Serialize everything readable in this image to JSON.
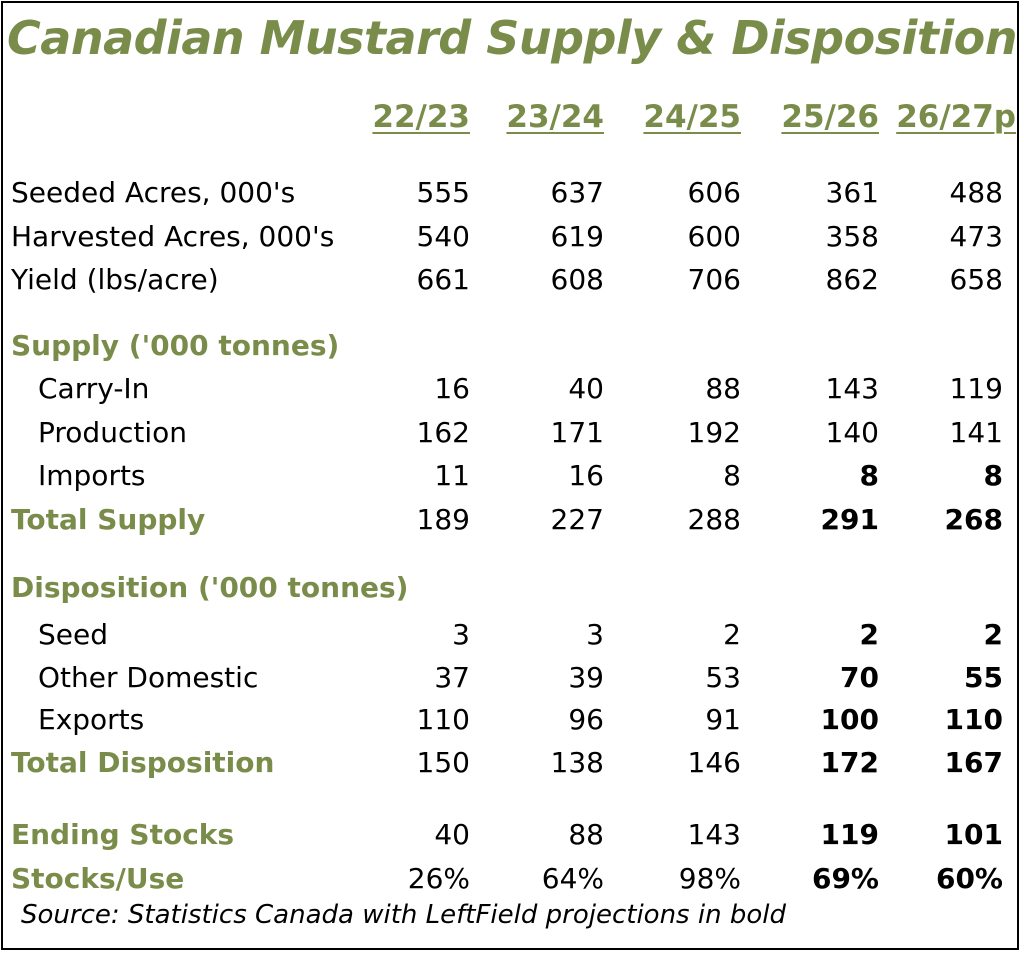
{
  "colors": {
    "accent": "#7a8c4a",
    "text": "#000000",
    "background": "#ffffff"
  },
  "chart_data": {
    "type": "table",
    "title": "Canadian Mustard Supply & Disposition",
    "columns": [
      "22/23",
      "23/24",
      "24/25",
      "25/26",
      "26/27p"
    ],
    "rows": [
      {
        "label": "Seeded Acres, 000's",
        "style": "plain",
        "values": [
          "555",
          "637",
          "606",
          "361",
          "488"
        ],
        "bold": [
          false,
          false,
          false,
          false,
          false
        ]
      },
      {
        "label": "Harvested Acres, 000's",
        "style": "plain",
        "values": [
          "540",
          "619",
          "600",
          "358",
          "473"
        ],
        "bold": [
          false,
          false,
          false,
          false,
          false
        ]
      },
      {
        "label": "Yield (lbs/acre)",
        "style": "plain",
        "values": [
          "661",
          "608",
          "706",
          "862",
          "658"
        ],
        "bold": [
          false,
          false,
          false,
          false,
          false
        ]
      },
      {
        "label": "Supply ('000 tonnes)",
        "style": "section",
        "values": [],
        "bold": []
      },
      {
        "label": "Carry-In",
        "style": "indent",
        "values": [
          "16",
          "40",
          "88",
          "143",
          "119"
        ],
        "bold": [
          false,
          false,
          false,
          false,
          false
        ]
      },
      {
        "label": "Production",
        "style": "indent",
        "values": [
          "162",
          "171",
          "192",
          "140",
          "141"
        ],
        "bold": [
          false,
          false,
          false,
          false,
          false
        ]
      },
      {
        "label": "Imports",
        "style": "indent",
        "values": [
          "11",
          "16",
          "8",
          "8",
          "8"
        ],
        "bold": [
          false,
          false,
          false,
          true,
          true
        ]
      },
      {
        "label": "Total Supply",
        "style": "section",
        "values": [
          "189",
          "227",
          "288",
          "291",
          "268"
        ],
        "bold": [
          false,
          false,
          false,
          true,
          true
        ]
      },
      {
        "label": "Disposition ('000 tonnes)",
        "style": "section",
        "values": [],
        "bold": []
      },
      {
        "label": "Seed",
        "style": "indent",
        "values": [
          "3",
          "3",
          "2",
          "2",
          "2"
        ],
        "bold": [
          false,
          false,
          false,
          true,
          true
        ]
      },
      {
        "label": "Other Domestic",
        "style": "indent",
        "values": [
          "37",
          "39",
          "53",
          "70",
          "55"
        ],
        "bold": [
          false,
          false,
          false,
          true,
          true
        ]
      },
      {
        "label": "Exports",
        "style": "indent",
        "values": [
          "110",
          "96",
          "91",
          "100",
          "110"
        ],
        "bold": [
          false,
          false,
          false,
          true,
          true
        ]
      },
      {
        "label": "Total Disposition",
        "style": "section",
        "values": [
          "150",
          "138",
          "146",
          "172",
          "167"
        ],
        "bold": [
          false,
          false,
          false,
          true,
          true
        ]
      },
      {
        "label": "Ending Stocks",
        "style": "section",
        "values": [
          "40",
          "88",
          "143",
          "119",
          "101"
        ],
        "bold": [
          false,
          false,
          false,
          true,
          true
        ]
      },
      {
        "label": "Stocks/Use",
        "style": "section",
        "values": [
          "26%",
          "64%",
          "98%",
          "69%",
          "60%"
        ],
        "bold": [
          false,
          false,
          false,
          true,
          true
        ]
      }
    ],
    "source": "Source: Statistics Canada with LeftField projections in bold"
  }
}
